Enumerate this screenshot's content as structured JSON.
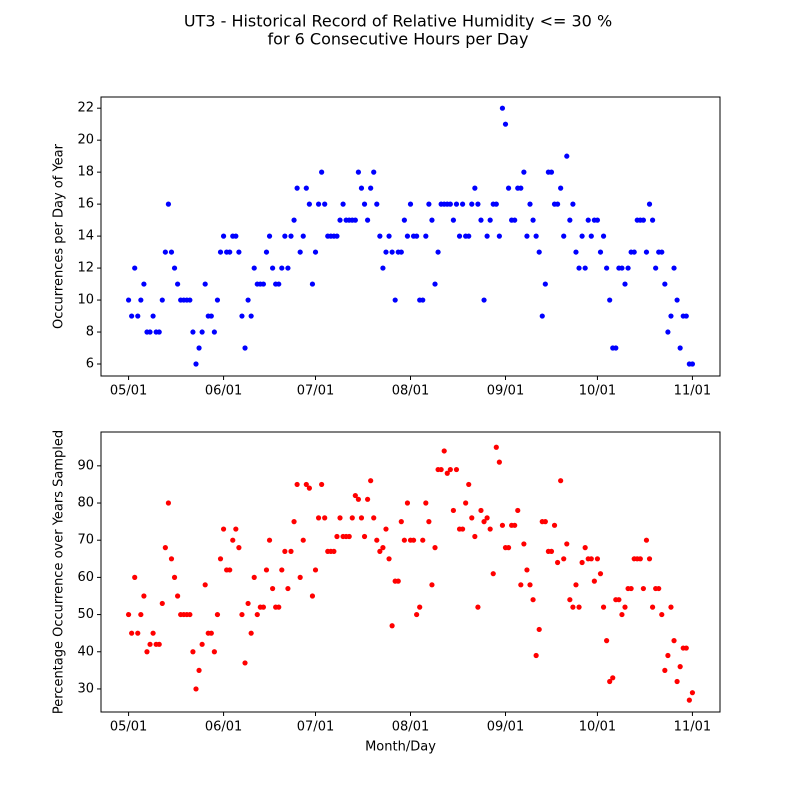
{
  "title": [
    "UT3 - Historical Record of Relative Humidity <= 30 %",
    "for 6 Consecutive Hours per Day"
  ],
  "chart_data": [
    {
      "type": "scatter",
      "ylabel": "Occurrences per Day of Year",
      "color": "#0000ff",
      "x": [
        0,
        1,
        2,
        3,
        4,
        5,
        6,
        7,
        8,
        9,
        10,
        11,
        12,
        13,
        14,
        15,
        16,
        17,
        18,
        19,
        20,
        21,
        22,
        23,
        24,
        25,
        26,
        27,
        28,
        29,
        30,
        31,
        32,
        33,
        34,
        35,
        36,
        37,
        38,
        39,
        40,
        41,
        42,
        43,
        44,
        45,
        46,
        47,
        48,
        49,
        50,
        51,
        52,
        53,
        54,
        55,
        56,
        57,
        58,
        59,
        60,
        61,
        62,
        63,
        64,
        65,
        66,
        67,
        68,
        69,
        70,
        71,
        72,
        73,
        74,
        75,
        76,
        77,
        78,
        79,
        80,
        81,
        82,
        83,
        84,
        85,
        86,
        87,
        88,
        89,
        90,
        91,
        92,
        93,
        94,
        95,
        96,
        97,
        98,
        99,
        100,
        101,
        102,
        103,
        104,
        105,
        106,
        107,
        108,
        109,
        110,
        111,
        112,
        113,
        114,
        115,
        116,
        117,
        118,
        119,
        120,
        121,
        122,
        123,
        124,
        125,
        126,
        127,
        128,
        129,
        130,
        131,
        132,
        133,
        134,
        135,
        136,
        137,
        138,
        139,
        140,
        141,
        142,
        143,
        144,
        145,
        146,
        147,
        148,
        149,
        150,
        151,
        152,
        153,
        154,
        155,
        156,
        157,
        158,
        159,
        160,
        161,
        162,
        163,
        164,
        165,
        166,
        167,
        168,
        169,
        170,
        171,
        172,
        173,
        174,
        175,
        176,
        177,
        178,
        179,
        180,
        181,
        182,
        183,
        184
      ],
      "values": [
        10,
        9,
        12,
        9,
        10,
        11,
        8,
        8,
        9,
        8,
        8,
        10,
        13,
        16,
        13,
        12,
        11,
        10,
        10,
        10,
        10,
        8,
        6,
        7,
        8,
        11,
        9,
        9,
        8,
        10,
        13,
        14,
        13,
        13,
        14,
        14,
        13,
        9,
        7,
        10,
        9,
        12,
        11,
        11,
        11,
        13,
        14,
        12,
        11,
        11,
        12,
        14,
        12,
        14,
        15,
        17,
        13,
        14,
        17,
        16,
        11,
        13,
        16,
        18,
        16,
        14,
        14,
        14,
        14,
        15,
        16,
        15,
        15,
        15,
        15,
        18,
        17,
        16,
        15,
        17,
        18,
        16,
        14,
        12,
        13,
        14,
        13,
        10,
        13,
        13,
        15,
        14,
        16,
        14,
        14,
        10,
        10,
        14,
        16,
        15,
        11,
        13,
        16,
        16,
        16,
        16,
        15,
        16,
        14,
        16,
        14,
        14,
        16,
        17,
        16,
        15,
        10,
        14,
        15,
        16,
        16,
        14,
        22,
        21,
        17,
        15,
        15,
        17,
        17,
        18,
        14,
        16,
        15,
        14,
        13,
        9,
        11,
        18,
        18,
        16,
        16,
        17,
        14,
        19,
        15,
        16,
        13,
        12,
        14,
        12,
        15,
        14,
        15,
        15,
        13,
        14,
        12,
        10,
        7,
        7,
        12,
        12,
        11,
        12,
        13,
        13,
        15,
        15,
        15,
        13,
        16,
        15,
        12,
        13,
        13,
        11,
        8,
        9,
        12,
        10,
        7,
        9,
        9,
        6,
        6
      ],
      "xlim": [
        -9,
        193
      ],
      "ylim": [
        5.25,
        22.7
      ],
      "xticks": [
        {
          "value": 0,
          "label": "05/01"
        },
        {
          "value": 31,
          "label": "06/01"
        },
        {
          "value": 61,
          "label": "07/01"
        },
        {
          "value": 92,
          "label": "08/01"
        },
        {
          "value": 123,
          "label": "09/01"
        },
        {
          "value": 153,
          "label": "10/01"
        },
        {
          "value": 184,
          "label": "11/01"
        }
      ],
      "yticks": [
        6,
        8,
        10,
        12,
        14,
        16,
        18,
        20,
        22
      ]
    },
    {
      "type": "scatter",
      "xlabel": "Month/Day",
      "ylabel": "Percentage Occurrence over Years Sampled",
      "color": "#ff0000",
      "x": [
        0,
        1,
        2,
        3,
        4,
        5,
        6,
        7,
        8,
        9,
        10,
        11,
        12,
        13,
        14,
        15,
        16,
        17,
        18,
        19,
        20,
        21,
        22,
        23,
        24,
        25,
        26,
        27,
        28,
        29,
        30,
        31,
        32,
        33,
        34,
        35,
        36,
        37,
        38,
        39,
        40,
        41,
        42,
        43,
        44,
        45,
        46,
        47,
        48,
        49,
        50,
        51,
        52,
        53,
        54,
        55,
        56,
        57,
        58,
        59,
        60,
        61,
        62,
        63,
        64,
        65,
        66,
        67,
        68,
        69,
        70,
        71,
        72,
        73,
        74,
        75,
        76,
        77,
        78,
        79,
        80,
        81,
        82,
        83,
        84,
        85,
        86,
        87,
        88,
        89,
        90,
        91,
        92,
        93,
        94,
        95,
        96,
        97,
        98,
        99,
        100,
        101,
        102,
        103,
        104,
        105,
        106,
        107,
        108,
        109,
        110,
        111,
        112,
        113,
        114,
        115,
        116,
        117,
        118,
        119,
        120,
        121,
        122,
        123,
        124,
        125,
        126,
        127,
        128,
        129,
        130,
        131,
        132,
        133,
        134,
        135,
        136,
        137,
        138,
        139,
        140,
        141,
        142,
        143,
        144,
        145,
        146,
        147,
        148,
        149,
        150,
        151,
        152,
        153,
        154,
        155,
        156,
        157,
        158,
        159,
        160,
        161,
        162,
        163,
        164,
        165,
        166,
        167,
        168,
        169,
        170,
        171,
        172,
        173,
        174,
        175,
        176,
        177,
        178,
        179,
        180,
        181,
        182,
        183,
        184
      ],
      "values": [
        50,
        45,
        60,
        45,
        50,
        55,
        40,
        42,
        45,
        42,
        42,
        53,
        68,
        80,
        65,
        60,
        55,
        50,
        50,
        50,
        50,
        40,
        30,
        35,
        42,
        58,
        45,
        45,
        40,
        50,
        65,
        73,
        62,
        62,
        70,
        73,
        68,
        50,
        37,
        53,
        45,
        60,
        50,
        52,
        52,
        62,
        70,
        57,
        52,
        52,
        62,
        67,
        57,
        67,
        75,
        85,
        60,
        70,
        85,
        84,
        55,
        62,
        76,
        85,
        76,
        67,
        67,
        67,
        71,
        76,
        71,
        71,
        71,
        76,
        82,
        81,
        76,
        71,
        81,
        86,
        76,
        70,
        67,
        68,
        73,
        65,
        47,
        59,
        59,
        75,
        70,
        80,
        70,
        70,
        50,
        52,
        70,
        80,
        75,
        58,
        68,
        89,
        89,
        94,
        88,
        89,
        78,
        89,
        73,
        73,
        80,
        85,
        76,
        71,
        52,
        78,
        75,
        76,
        73,
        61,
        95,
        91,
        74,
        68,
        68,
        74,
        74,
        78,
        58,
        69,
        62,
        58,
        54,
        39,
        46,
        75,
        75,
        67,
        67,
        74,
        64,
        86,
        65,
        69,
        54,
        52,
        58,
        52,
        64,
        68,
        65,
        65,
        59,
        65,
        61,
        52,
        43,
        32,
        33,
        54,
        54,
        50,
        52,
        57,
        57,
        65,
        65,
        65,
        57,
        70,
        65,
        52,
        57,
        57,
        50,
        35,
        39,
        52,
        43,
        32,
        36,
        41,
        41,
        27,
        29
      ],
      "xlim": [
        -9,
        193
      ],
      "ylim": [
        23.8,
        99.1
      ],
      "xticks": [
        {
          "value": 0,
          "label": "05/01"
        },
        {
          "value": 31,
          "label": "06/01"
        },
        {
          "value": 61,
          "label": "07/01"
        },
        {
          "value": 92,
          "label": "08/01"
        },
        {
          "value": 123,
          "label": "09/01"
        },
        {
          "value": 153,
          "label": "10/01"
        },
        {
          "value": 184,
          "label": "11/01"
        }
      ],
      "yticks": [
        30,
        40,
        50,
        60,
        70,
        80,
        90
      ]
    }
  ]
}
